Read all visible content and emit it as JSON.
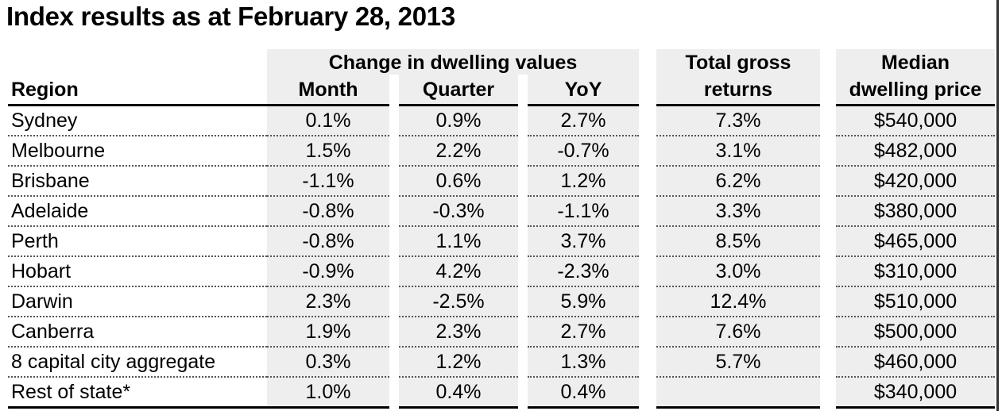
{
  "title": "Index results as at February 28, 2013",
  "headers": {
    "group_change": "Change in dwelling values",
    "region": "Region",
    "month": "Month",
    "quarter": "Quarter",
    "yoy": "YoY",
    "total_gross_line1": "Total gross",
    "total_gross_line2": "returns",
    "median_line1": "Median",
    "median_line2": "dwelling price"
  },
  "rows": [
    {
      "region": "Sydney",
      "month": "0.1%",
      "quarter": "0.9%",
      "yoy": "2.7%",
      "total_gross": "7.3%",
      "median": "$540,000"
    },
    {
      "region": "Melbourne",
      "month": "1.5%",
      "quarter": "2.2%",
      "yoy": "-0.7%",
      "total_gross": "3.1%",
      "median": "$482,000"
    },
    {
      "region": "Brisbane",
      "month": "-1.1%",
      "quarter": "0.6%",
      "yoy": "1.2%",
      "total_gross": "6.2%",
      "median": "$420,000"
    },
    {
      "region": "Adelaide",
      "month": "-0.8%",
      "quarter": "-0.3%",
      "yoy": "-1.1%",
      "total_gross": "3.3%",
      "median": "$380,000"
    },
    {
      "region": "Perth",
      "month": "-0.8%",
      "quarter": "1.1%",
      "yoy": "3.7%",
      "total_gross": "8.5%",
      "median": "$465,000"
    },
    {
      "region": "Hobart",
      "month": "-0.9%",
      "quarter": "4.2%",
      "yoy": "-2.3%",
      "total_gross": "3.0%",
      "median": "$310,000"
    },
    {
      "region": "Darwin",
      "month": "2.3%",
      "quarter": "-2.5%",
      "yoy": "5.9%",
      "total_gross": "12.4%",
      "median": "$510,000"
    },
    {
      "region": "Canberra",
      "month": "1.9%",
      "quarter": "2.3%",
      "yoy": "2.7%",
      "total_gross": "7.6%",
      "median": "$500,000"
    },
    {
      "region": "8 capital city aggregate",
      "month": "0.3%",
      "quarter": "1.2%",
      "yoy": "1.3%",
      "total_gross": "5.7%",
      "median": "$460,000"
    },
    {
      "region": "Rest of state*",
      "month": "1.0%",
      "quarter": "0.4%",
      "yoy": "0.4%",
      "total_gross": "",
      "median": "$340,000"
    }
  ]
}
